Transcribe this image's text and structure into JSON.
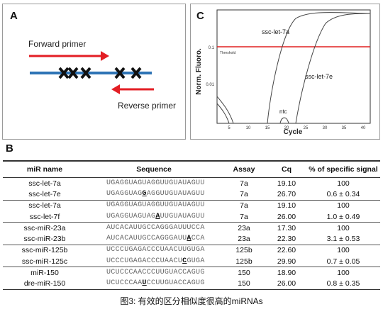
{
  "panel_a": {
    "label": "A",
    "forward_primer": "Forward primer",
    "reverse_primer": "Reverse primer"
  },
  "panel_c": {
    "label": "C",
    "y_axis_label": "Norm. Fluoro.",
    "x_axis_label": "Cycle",
    "threshold_label": "Threshold",
    "y_ticks": [
      "0.1",
      "0.01"
    ],
    "x_ticks": [
      "5",
      "10",
      "15",
      "20",
      "25",
      "30",
      "35",
      "40"
    ],
    "curve_labels": [
      "ssc-let-7a",
      "ssc-let-7e",
      "ntc"
    ],
    "threshold_color": "#e02020"
  },
  "panel_b": {
    "label": "B",
    "headers": [
      "miR name",
      "Sequence",
      "Assay",
      "Cq",
      "% of specific signal"
    ],
    "rows": [
      {
        "name": "ssc-let-7a",
        "seq_pre": "UGAGGUAGUAGGUUGUAUAGUU",
        "seq_mut": "",
        "seq_post": "",
        "assay": "7a",
        "cq": "19.10",
        "pct": "100"
      },
      {
        "name": "ssc-let-7e",
        "seq_pre": "UGAGGUAG",
        "seq_mut": "G",
        "seq_post": "AGGUUGUAUAGUU",
        "assay": "7a",
        "cq": "26.70",
        "pct": "0.6 ± 0.34"
      },
      {
        "name": "ssc-let-7a",
        "seq_pre": "UGAGGUAGUAGGUUGUAUAGUU",
        "seq_mut": "",
        "seq_post": "",
        "assay": "7a",
        "cq": "19.10",
        "pct": "100"
      },
      {
        "name": "ssc-let-7f",
        "seq_pre": "UGAGGUAGUAG",
        "seq_mut": "A",
        "seq_post": "UUGUAUAGUU",
        "assay": "7a",
        "cq": "26.00",
        "pct": "1.0 ± 0.49"
      },
      {
        "name": "ssc-miR-23a",
        "seq_pre": "AUCACAUUGCCAGGGAUUUCCA",
        "seq_mut": "",
        "seq_post": "",
        "assay": "23a",
        "cq": "17.30",
        "pct": "100"
      },
      {
        "name": "ssc-miR-23b",
        "seq_pre": "AUCACAUUGCCAGGGAUU",
        "seq_mut": "A",
        "seq_post": "CCA",
        "assay": "23a",
        "cq": "22.30",
        "pct": "3.1 ± 0.53"
      },
      {
        "name": "ssc-miR-125b",
        "seq_pre": "UCCCUGAGACCCUAACUUGUGA",
        "seq_mut": "",
        "seq_post": "",
        "assay": "125b",
        "cq": "22.60",
        "pct": "100"
      },
      {
        "name": "ssc-miR-125c",
        "seq_pre": "UCCCUGAGACCCUAACU",
        "seq_mut": "C",
        "seq_post": "GUGA",
        "assay": "125b",
        "cq": "29.90",
        "pct": "0.7 ± 0.05"
      },
      {
        "name": "miR-150",
        "seq_pre": "UCUCCCAACCCUUGUACCAGUG",
        "seq_mut": "",
        "seq_post": "",
        "assay": "150",
        "cq": "18.90",
        "pct": "100"
      },
      {
        "name": "dre-miR-150",
        "seq_pre": "UCUCCCAA",
        "seq_mut": "U",
        "seq_post": "CCUUGUACCAGUG",
        "assay": "150",
        "cq": "26.00",
        "pct": "0.8 ± 0.35"
      }
    ]
  },
  "caption": "图3: 有效的区分相似度很高的miRNAs"
}
